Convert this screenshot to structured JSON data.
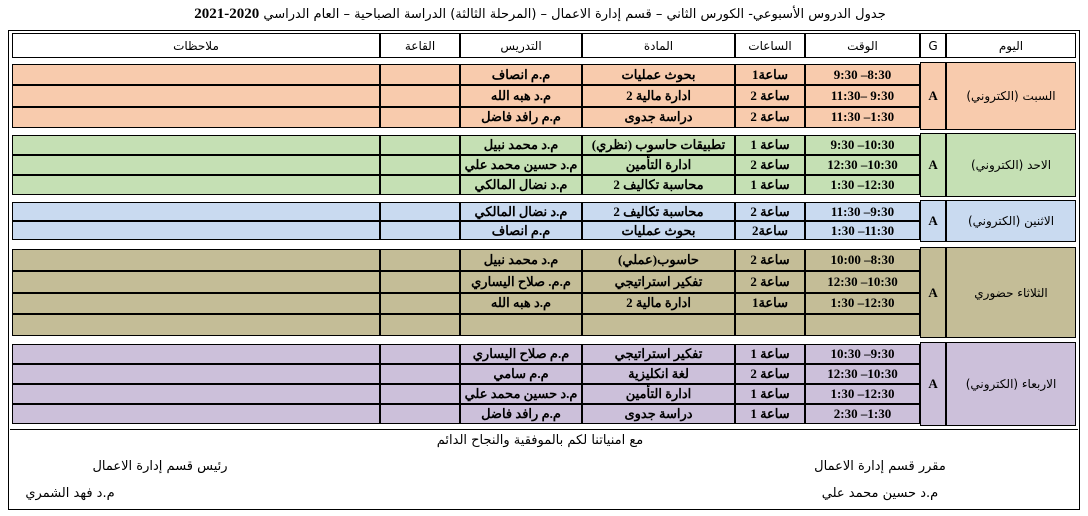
{
  "header": {
    "title": "جدول الدروس الأسبوعي- الكورس الثاني – قسم إدارة الاعمال – (المرحلة الثالثة) الدراسة الصباحية – العام الدراسي",
    "year": "2020-2021"
  },
  "table": {
    "columns": [
      "اليوم",
      "G",
      "الوقت",
      "الساعات",
      "المادة",
      "التدريس",
      "القاعة",
      "ملاحظات"
    ],
    "days": [
      {
        "name": "السبت (الكتروني)",
        "group": "A",
        "color": "#f8cbad",
        "rows": [
          [
            "9:30 –8:30",
            "1ساعة",
            "بحوث عمليات",
            "م.م انصاف"
          ],
          [
            "11:30– 9:30",
            "2 ساعة",
            "ادارة مالية 2",
            "م.د هبه الله"
          ],
          [
            "11:30 –1:30",
            "2 ساعة",
            "دراسة جدوى",
            "م.م رافد فاضل"
          ]
        ]
      },
      {
        "name": "الاحد (الكتروني)",
        "group": "A",
        "color": "#c5e0b4",
        "rows": [
          [
            "9:30 –10:30",
            "1 ساعة",
            "تطبيقات حاسوب (نظري)",
            "م.د محمد نبيل"
          ],
          [
            "12:30 –10:30",
            "2 ساعة",
            "ادارة التأمين",
            "م.د حسين محمد علي"
          ],
          [
            "1:30 –12:30",
            "1 ساعة",
            "محاسبة تكاليف 2",
            "م.د نضال المالكي"
          ]
        ]
      },
      {
        "name": "الاثنين (الكتروني)",
        "group": "A",
        "color": "#c9daf0",
        "rows": [
          [
            "11:30 –9:30",
            "2 ساعة",
            "محاسبة تكاليف 2",
            "م.د نضال المالكي"
          ],
          [
            "1:30 –11:30",
            "2ساعة",
            "بحوث عمليات",
            "م.م انصاف"
          ]
        ]
      },
      {
        "name": "الثلاثاء حضوري",
        "group": "A",
        "color": "#c4bd97",
        "rows": [
          [
            "10:00 –8:30",
            "2 ساعة",
            "حاسوب(عملي)",
            "م.د محمد نبيل"
          ],
          [
            "12:30 –10:30",
            "2 ساعة",
            "تفكير استراتيجي",
            "م.م. صلاح اليساري"
          ],
          [
            "1:30 –12:30",
            "1ساعة",
            "ادارة مالية 2",
            "م.د هبه الله"
          ]
        ]
      },
      {
        "name": "الاربعاء (الكتروني)",
        "group": "A",
        "color": "#ccc0da",
        "rows": [
          [
            "10:30 –9:30",
            "1 ساعة",
            "تفكير استراتيجي",
            "م.م صلاح اليساري"
          ],
          [
            "12:30 –10:30",
            "2 ساعة",
            "لغة انكليزية",
            "م.م سامي"
          ],
          [
            "1:30 –12:30",
            "1 ساعة",
            "ادارة التأمين",
            "م.د حسين محمد علي"
          ],
          [
            "2:30 –1:30",
            "1 ساعة",
            "دراسة جدوى",
            "م.م رافد فاضل"
          ]
        ]
      }
    ]
  },
  "footer": {
    "wish": "مع امنياتنا لكم بالموفقية والنجاح الدائم",
    "right_title": "مقرر قسم إدارة الاعمال",
    "right_name": "م.د حسين محمد علي",
    "left_title": "رئيس قسم إدارة الاعمال",
    "left_name": "م.د فهد الشمري"
  }
}
